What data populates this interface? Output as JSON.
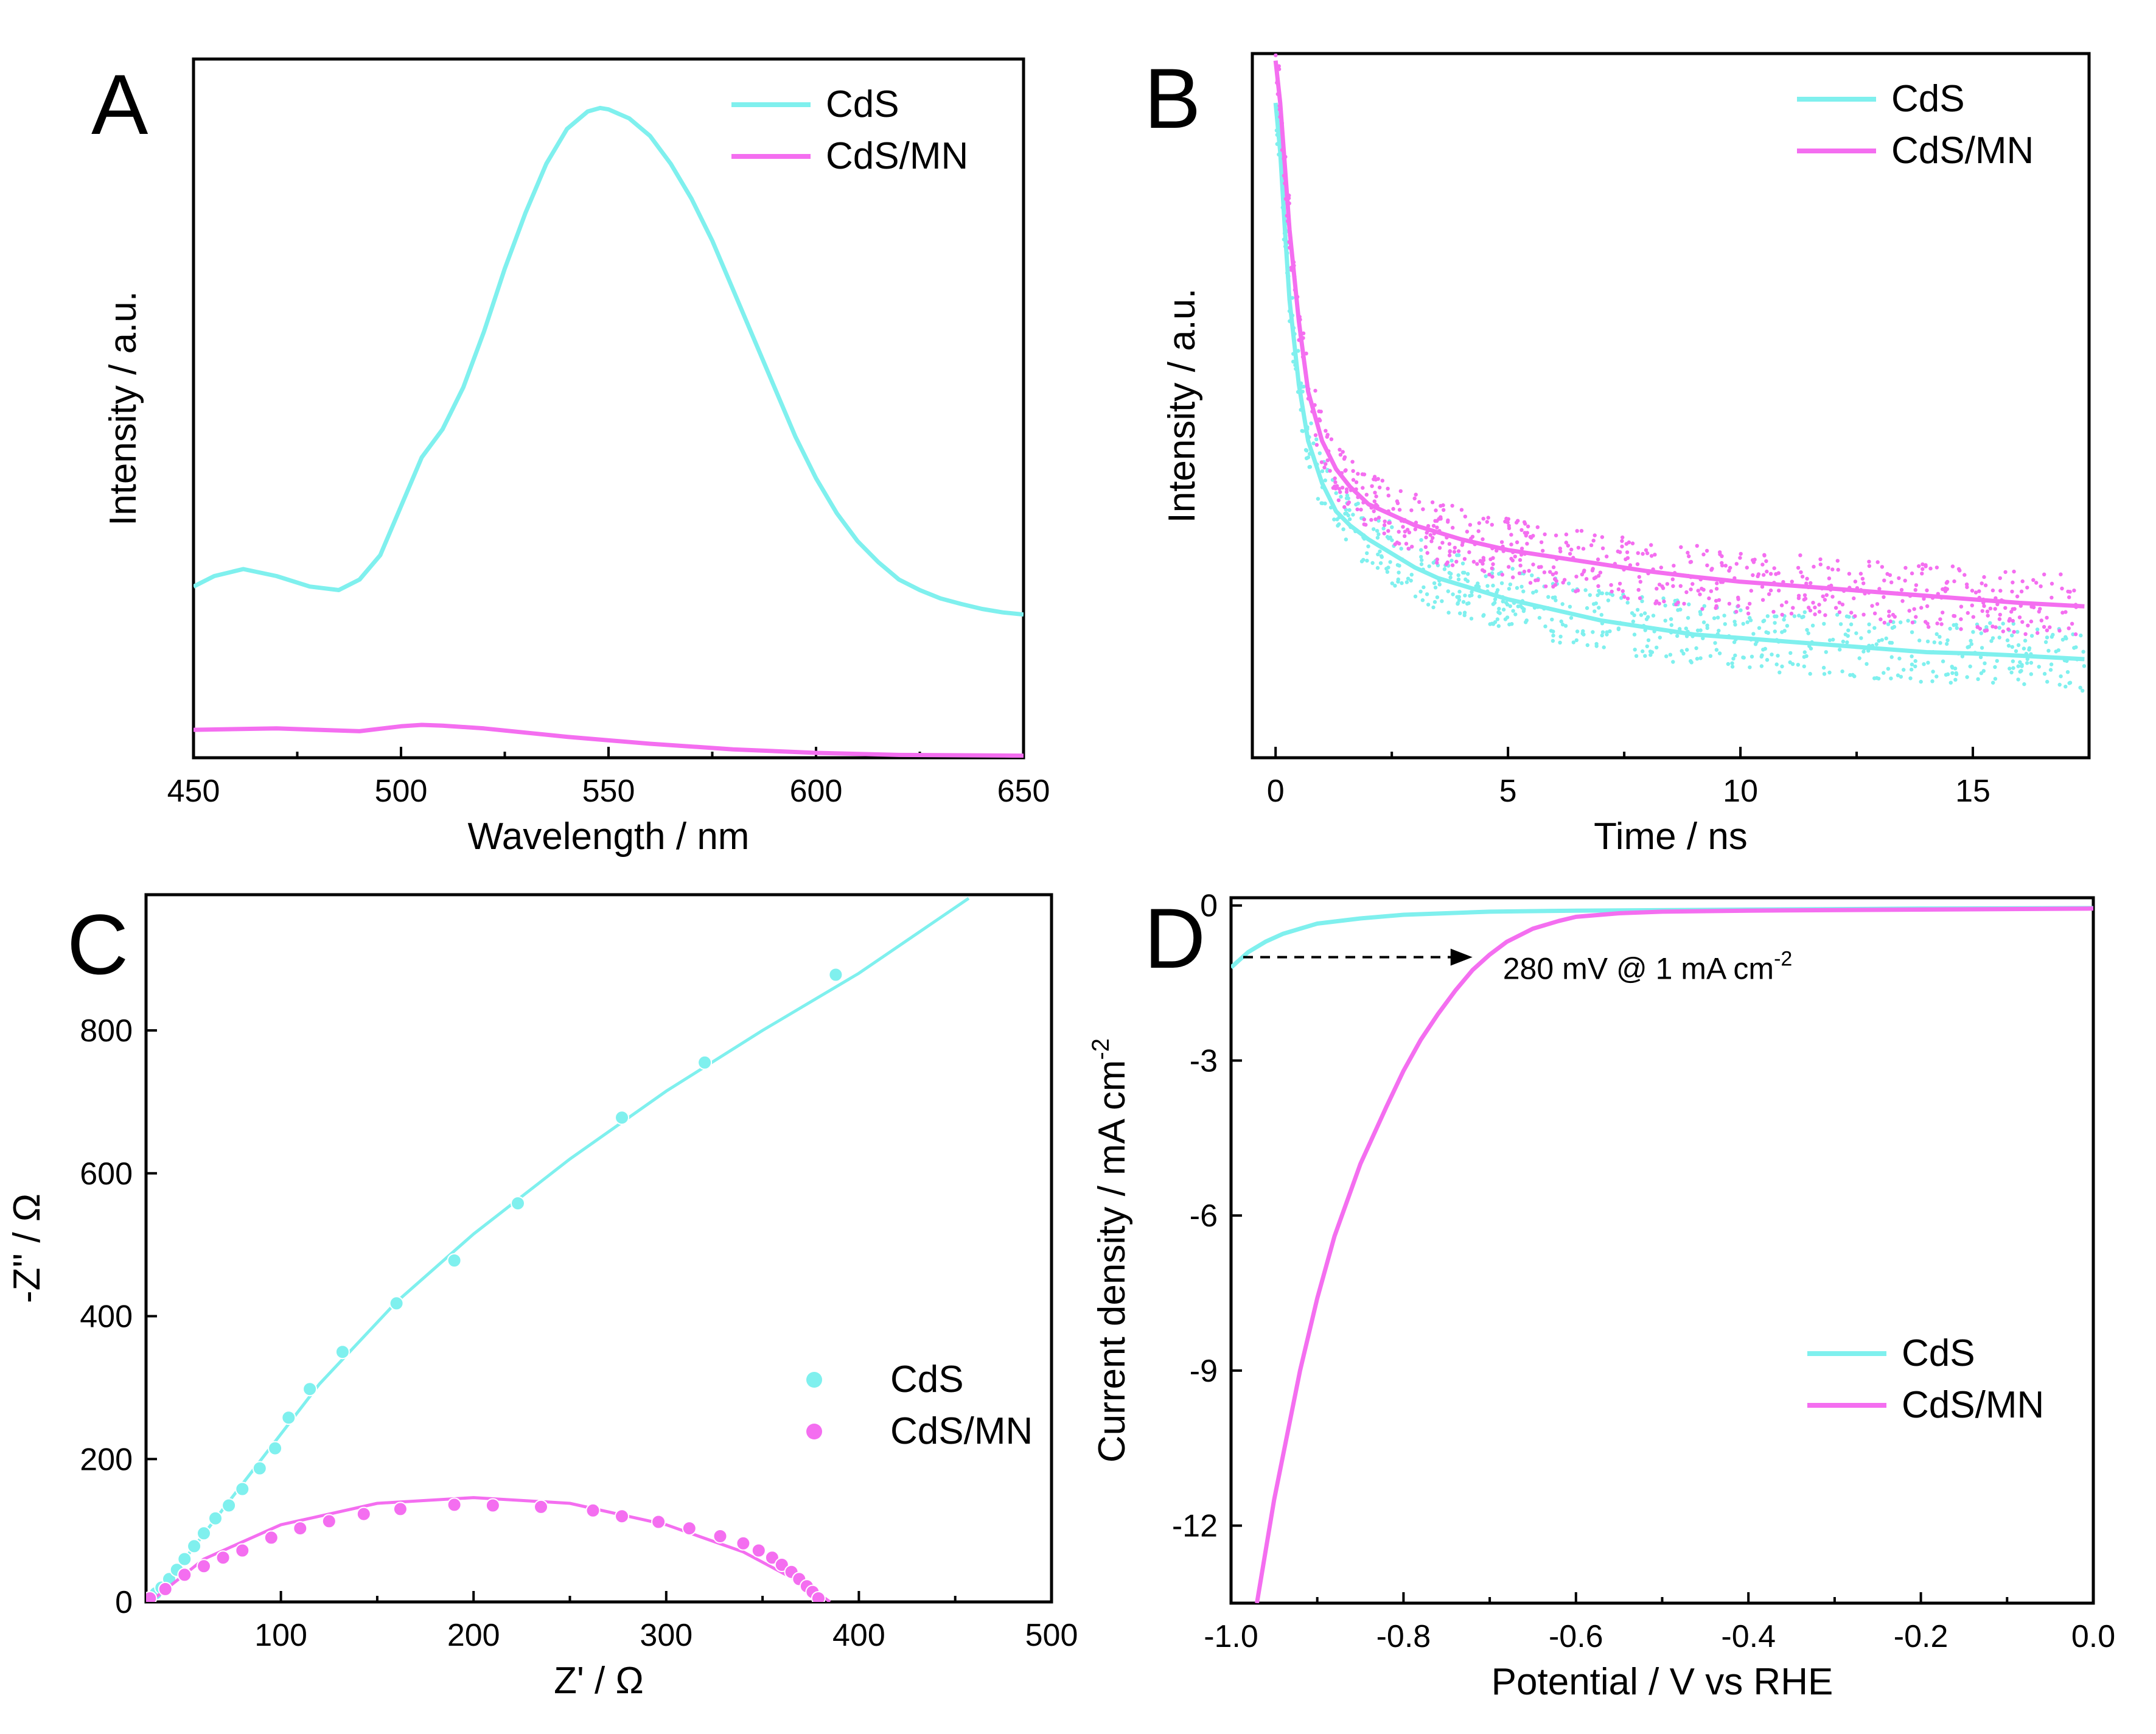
{
  "colors": {
    "CdS": "#7ff0ee",
    "CdS/MN": "#f46ef0"
  },
  "chart_data": [
    {
      "id": "A",
      "type": "line",
      "panel_label": "A",
      "xlabel": "Wavelength / nm",
      "ylabel": "Intensity / a.u.",
      "xlim": [
        450,
        650
      ],
      "ylim": [
        0,
        1
      ],
      "xticks": [
        450,
        500,
        550,
        600,
        650
      ],
      "xtick_labels": [
        "450",
        "500",
        "550",
        "600",
        "650"
      ],
      "yticks": [],
      "ytick_labels": [],
      "legend_placement": "top-right",
      "series": [
        {
          "name": "CdS",
          "color": "#7ff0ee",
          "style": "line",
          "x": [
            450,
            455,
            462,
            470,
            478,
            485,
            490,
            495,
            500,
            505,
            510,
            515,
            520,
            525,
            530,
            535,
            540,
            545,
            548,
            550,
            555,
            560,
            565,
            570,
            575,
            580,
            585,
            590,
            595,
            600,
            605,
            610,
            615,
            620,
            625,
            630,
            635,
            640,
            645,
            650
          ],
          "y": [
            0.245,
            0.26,
            0.27,
            0.26,
            0.245,
            0.24,
            0.255,
            0.29,
            0.36,
            0.43,
            0.47,
            0.53,
            0.61,
            0.7,
            0.78,
            0.85,
            0.9,
            0.925,
            0.93,
            0.928,
            0.915,
            0.89,
            0.85,
            0.8,
            0.74,
            0.67,
            0.6,
            0.53,
            0.46,
            0.4,
            0.35,
            0.31,
            0.28,
            0.255,
            0.24,
            0.228,
            0.22,
            0.213,
            0.208,
            0.205
          ]
        },
        {
          "name": "CdS/MN",
          "color": "#f46ef0",
          "style": "line",
          "x": [
            450,
            470,
            490,
            500,
            505,
            510,
            520,
            540,
            560,
            580,
            600,
            620,
            650
          ],
          "y": [
            0.04,
            0.042,
            0.038,
            0.045,
            0.047,
            0.046,
            0.042,
            0.03,
            0.02,
            0.012,
            0.007,
            0.004,
            0.003
          ]
        }
      ]
    },
    {
      "id": "B",
      "type": "scatter",
      "panel_label": "B",
      "xlabel": "Time / ns",
      "ylabel": "Intensity / a.u.",
      "xlim": [
        -0.5,
        17.5
      ],
      "ylim": [
        0,
        1
      ],
      "xticks": [
        0,
        5,
        10,
        15
      ],
      "xtick_labels": [
        "0",
        "5",
        "10",
        "15"
      ],
      "yticks": [],
      "ytick_labels": [],
      "legend_placement": "top-right",
      "series": [
        {
          "name": "CdS",
          "color": "#7ff0ee",
          "style": "fit+points",
          "x": [
            0,
            0.1,
            0.2,
            0.3,
            0.5,
            0.7,
            1.0,
            1.3,
            1.6,
            2.0,
            2.5,
            3.0,
            3.5,
            4.0,
            5.0,
            6.0,
            7.0,
            8.0,
            9.0,
            10.0,
            11.0,
            12.0,
            13.0,
            14.0,
            15.0,
            16.0,
            17.4
          ],
          "y": [
            0.93,
            0.86,
            0.75,
            0.65,
            0.53,
            0.45,
            0.39,
            0.35,
            0.33,
            0.31,
            0.29,
            0.27,
            0.255,
            0.245,
            0.225,
            0.21,
            0.195,
            0.185,
            0.175,
            0.17,
            0.165,
            0.16,
            0.155,
            0.15,
            0.148,
            0.145,
            0.14
          ]
        },
        {
          "name": "CdS/MN",
          "color": "#f46ef0",
          "style": "fit+points",
          "x": [
            0,
            0.1,
            0.2,
            0.3,
            0.5,
            0.7,
            1.0,
            1.3,
            1.6,
            2.0,
            2.5,
            3.0,
            3.5,
            4.0,
            5.0,
            6.0,
            7.0,
            8.0,
            9.0,
            10.0,
            11.0,
            12.0,
            13.0,
            14.0,
            15.0,
            16.0,
            17.4
          ],
          "y": [
            0.99,
            0.93,
            0.84,
            0.75,
            0.62,
            0.52,
            0.45,
            0.41,
            0.385,
            0.36,
            0.345,
            0.33,
            0.32,
            0.31,
            0.295,
            0.285,
            0.275,
            0.265,
            0.257,
            0.25,
            0.245,
            0.24,
            0.235,
            0.23,
            0.225,
            0.22,
            0.215
          ]
        }
      ]
    },
    {
      "id": "C",
      "type": "scatter",
      "panel_label": "C",
      "xlabel": "Z' / Ω",
      "ylabel": "-Z'' / Ω",
      "xlim": [
        30,
        500
      ],
      "ylim": [
        0,
        990
      ],
      "xticks": [
        100,
        200,
        300,
        400,
        500
      ],
      "xtick_labels": [
        "100",
        "200",
        "300",
        "400",
        "500"
      ],
      "yticks": [
        0,
        200,
        400,
        600,
        800
      ],
      "ytick_labels": [
        "0",
        "200",
        "400",
        "600",
        "800"
      ],
      "legend_placement": "bottom-right",
      "series": [
        {
          "name": "CdS",
          "color": "#7ff0ee",
          "style": "fit+points",
          "x": [
            32,
            35,
            38,
            42,
            46,
            50,
            55,
            60,
            66,
            73,
            80,
            89,
            97,
            104,
            115,
            132,
            160,
            190,
            223,
            277,
            320,
            388
          ],
          "y": [
            5,
            12,
            20,
            32,
            45,
            60,
            78,
            96,
            117,
            135,
            158,
            187,
            215,
            258,
            298,
            350,
            418,
            478,
            558,
            678,
            755,
            878
          ],
          "fit_x": [
            32,
            50,
            80,
            120,
            160,
            200,
            250,
            300,
            350,
            400,
            457
          ],
          "fit_y": [
            0,
            60,
            165,
            305,
            420,
            515,
            620,
            715,
            800,
            880,
            985
          ]
        },
        {
          "name": "CdS/MN",
          "color": "#f46ef0",
          "style": "fit+points",
          "x": [
            32,
            40,
            50,
            60,
            70,
            80,
            95,
            110,
            125,
            143,
            162,
            190,
            210,
            235,
            262,
            277,
            296,
            312,
            328,
            340,
            348,
            355,
            360,
            365,
            369,
            373,
            376,
            379
          ],
          "y": [
            5,
            18,
            38,
            50,
            62,
            72,
            90,
            103,
            113,
            123,
            130,
            136,
            135,
            133,
            128,
            120,
            112,
            103,
            92,
            82,
            72,
            62,
            52,
            42,
            32,
            22,
            14,
            5
          ],
          "fit_x": [
            32,
            60,
            100,
            150,
            200,
            250,
            300,
            340,
            365,
            380,
            385
          ],
          "fit_y": [
            0,
            60,
            108,
            138,
            146,
            138,
            108,
            70,
            34,
            10,
            0
          ]
        }
      ]
    },
    {
      "id": "D",
      "type": "line",
      "panel_label": "D",
      "xlabel": "Potential / V vs RHE",
      "ylabel": "Current density / mA cm",
      "ylabel_superscript": "-2",
      "xlim": [
        -1.0,
        0.0
      ],
      "ylim": [
        -13.5,
        0.15
      ],
      "xticks": [
        -1.0,
        -0.8,
        -0.6,
        -0.4,
        -0.2,
        0.0
      ],
      "xtick_labels": [
        "-1.0",
        "-0.8",
        "-0.6",
        "-0.4",
        "-0.2",
        "0.0"
      ],
      "yticks": [
        0,
        -3,
        -6,
        -9,
        -12
      ],
      "ytick_labels": [
        "0",
        "-3",
        "-6",
        "-9",
        "-12"
      ],
      "legend_placement": "bottom-right",
      "annotation": {
        "text": "280 mV @ 1 mA cm",
        "superscript": "-2",
        "from": [
          -1.0,
          -1.0
        ],
        "to": [
          -0.72,
          -1.0
        ]
      },
      "series": [
        {
          "name": "CdS",
          "color": "#7ff0ee",
          "style": "line",
          "x": [
            -1.0,
            -0.98,
            -0.96,
            -0.94,
            -0.92,
            -0.9,
            -0.85,
            -0.8,
            -0.7,
            -0.6,
            -0.4,
            -0.2,
            0.0
          ],
          "y": [
            -1.2,
            -0.9,
            -0.7,
            -0.55,
            -0.45,
            -0.35,
            -0.25,
            -0.18,
            -0.12,
            -0.1,
            -0.08,
            -0.06,
            -0.05
          ]
        },
        {
          "name": "CdS/MN",
          "color": "#f46ef0",
          "style": "line",
          "x": [
            -0.97,
            -0.95,
            -0.92,
            -0.9,
            -0.88,
            -0.85,
            -0.82,
            -0.8,
            -0.78,
            -0.76,
            -0.74,
            -0.72,
            -0.7,
            -0.68,
            -0.65,
            -0.62,
            -0.6,
            -0.55,
            -0.5,
            -0.4,
            -0.2,
            0.0
          ],
          "y": [
            -13.5,
            -11.5,
            -9.0,
            -7.6,
            -6.4,
            -5.0,
            -3.9,
            -3.2,
            -2.6,
            -2.1,
            -1.65,
            -1.25,
            -0.95,
            -0.7,
            -0.45,
            -0.3,
            -0.22,
            -0.15,
            -0.12,
            -0.1,
            -0.08,
            -0.06
          ]
        }
      ]
    }
  ]
}
